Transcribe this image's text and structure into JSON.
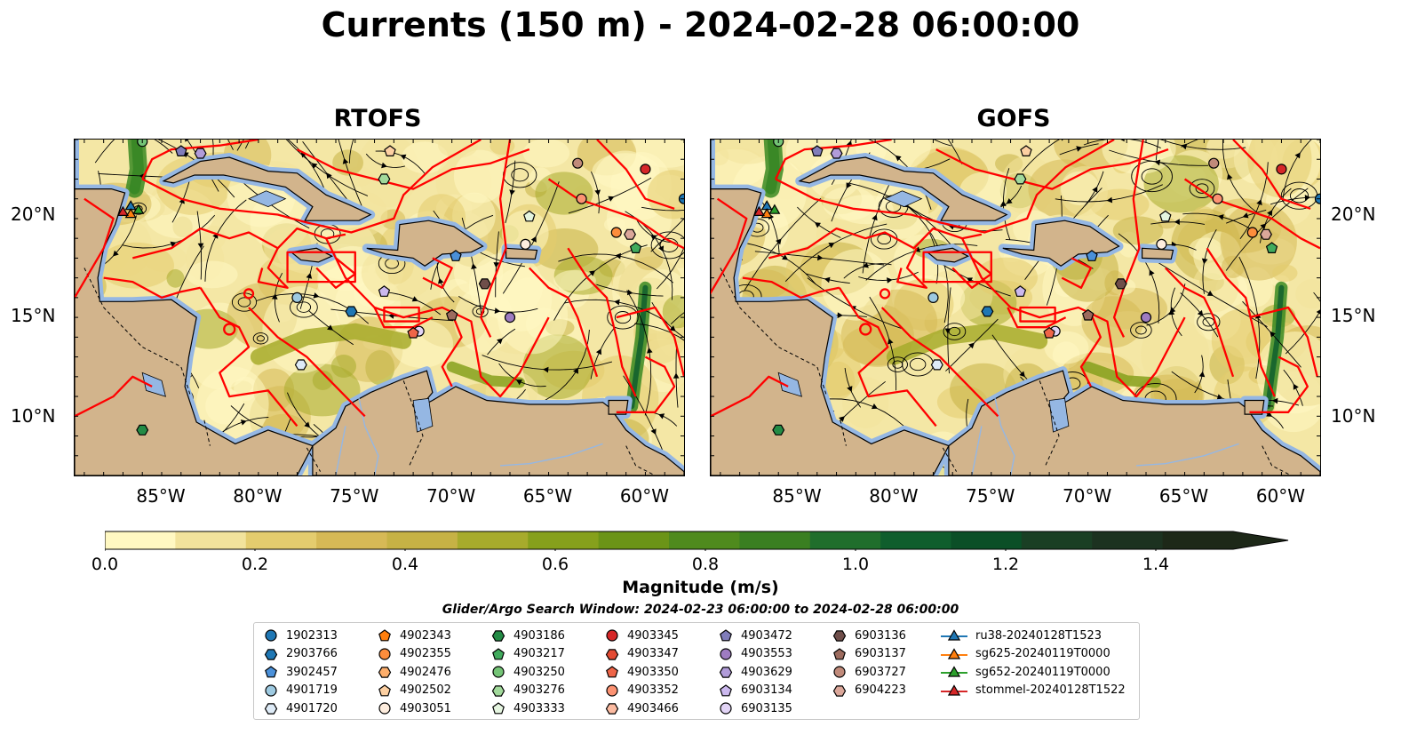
{
  "title": "Currents (150 m) - 2024-02-28 06:00:00",
  "panels": [
    {
      "title": "RTOFS"
    },
    {
      "title": "GOFS"
    }
  ],
  "map": {
    "lat_labels": [
      "20°N",
      "15°N",
      "10°N"
    ],
    "lon_labels": [
      "85°W",
      "80°W",
      "75°W",
      "70°W",
      "65°W",
      "60°W"
    ],
    "lon_range": [
      -89.5,
      -58.0
    ],
    "lat_range": [
      7.0,
      24.0
    ],
    "colors": {
      "ocean_deep": "#95b7e3",
      "land": "#d2b48c",
      "eez": "#ff0000",
      "streamline": "#000000"
    }
  },
  "colorbar": {
    "label": "Magnitude (m/s)",
    "ticks": [
      "0.0",
      "0.2",
      "0.4",
      "0.6",
      "0.8",
      "1.0",
      "1.2",
      "1.4"
    ],
    "colors": [
      "#fff8c2",
      "#f2e39c",
      "#e4cc6e",
      "#d6b956",
      "#c6b245",
      "#a7ab2c",
      "#86a01c",
      "#6b9417",
      "#4f8a1d",
      "#3a7f21",
      "#206e2c",
      "#0f5e2d",
      "#0b4f27",
      "#1a3f24",
      "#1c3220",
      "#1d2818"
    ]
  },
  "search_window": "Glider/Argo Search Window: 2024-02-23 06:00:00 to 2024-02-28 06:00:00",
  "legend": [
    {
      "label": "1902313",
      "color": "#1f77b4",
      "shape": "circle"
    },
    {
      "label": "2903766",
      "color": "#1f77b4",
      "shape": "hexagon"
    },
    {
      "label": "3902457",
      "color": "#4a90d9",
      "shape": "pentagon"
    },
    {
      "label": "4901719",
      "color": "#9ecae1",
      "shape": "circle"
    },
    {
      "label": "4901720",
      "color": "#deebf7",
      "shape": "hexagon"
    },
    {
      "label": "4902343",
      "color": "#ff7f0e",
      "shape": "pentagon"
    },
    {
      "label": "4902355",
      "color": "#fd8d3c",
      "shape": "circle"
    },
    {
      "label": "4902476",
      "color": "#fdae6b",
      "shape": "hexagon"
    },
    {
      "label": "4902502",
      "color": "#fdd0a2",
      "shape": "pentagon"
    },
    {
      "label": "4903051",
      "color": "#feedde",
      "shape": "circle"
    },
    {
      "label": "4903186",
      "color": "#238b45",
      "shape": "hexagon"
    },
    {
      "label": "4903217",
      "color": "#41ab5d",
      "shape": "pentagon"
    },
    {
      "label": "4903250",
      "color": "#74c476",
      "shape": "circle"
    },
    {
      "label": "4903276",
      "color": "#a1d99b",
      "shape": "hexagon"
    },
    {
      "label": "4903333",
      "color": "#e5f5e0",
      "shape": "pentagon"
    },
    {
      "label": "4903345",
      "color": "#d62728",
      "shape": "circle"
    },
    {
      "label": "4903347",
      "color": "#e34a33",
      "shape": "hexagon"
    },
    {
      "label": "4903350",
      "color": "#ef6548",
      "shape": "pentagon"
    },
    {
      "label": "4903352",
      "color": "#fc9272",
      "shape": "circle"
    },
    {
      "label": "4903466",
      "color": "#fcbba1",
      "shape": "hexagon"
    },
    {
      "label": "4903472",
      "color": "#807dba",
      "shape": "pentagon"
    },
    {
      "label": "4903553",
      "color": "#9e7cc1",
      "shape": "circle"
    },
    {
      "label": "4903629",
      "color": "#b19cd9",
      "shape": "hexagon"
    },
    {
      "label": "6903134",
      "color": "#cbb8ee",
      "shape": "pentagon"
    },
    {
      "label": "6903135",
      "color": "#e2d4f6",
      "shape": "circle"
    },
    {
      "label": "6903136",
      "color": "#6f4e4a",
      "shape": "hexagon"
    },
    {
      "label": "6903137",
      "color": "#9c6b5e",
      "shape": "pentagon"
    },
    {
      "label": "6903727",
      "color": "#c08a7a",
      "shape": "circle"
    },
    {
      "label": "6904223",
      "color": "#dba79a",
      "shape": "hexagon"
    },
    {
      "label": "ru38-20240128T1523",
      "color": "#1f77b4",
      "shape": "triangle"
    },
    {
      "label": "sg625-20240119T0000",
      "color": "#ff7f0e",
      "shape": "triangle"
    },
    {
      "label": "sg652-20240119T0000",
      "color": "#2ca02c",
      "shape": "triangle"
    },
    {
      "label": "stommel-20240128T1522",
      "color": "#d62728",
      "shape": "triangle"
    }
  ],
  "markers": [
    {
      "id": "1902313",
      "lon": -58.0,
      "lat": 21.0
    },
    {
      "id": "4901719",
      "lon": -78.0,
      "lat": 16.0
    },
    {
      "id": "2903766",
      "lon": -75.2,
      "lat": 15.3
    },
    {
      "id": "4901720",
      "lon": -77.8,
      "lat": 12.6
    },
    {
      "id": "4903186",
      "lon": -86.0,
      "lat": 9.3
    },
    {
      "id": "4903217",
      "lon": -60.5,
      "lat": 18.5
    },
    {
      "id": "4903276",
      "lon": -73.5,
      "lat": 22.0
    },
    {
      "id": "4903250",
      "lon": -86.0,
      "lat": 23.9
    },
    {
      "id": "4903345",
      "lon": -60.0,
      "lat": 22.5
    },
    {
      "id": "4903352",
      "lon": -63.3,
      "lat": 21.0
    },
    {
      "id": "6903727",
      "lon": -63.5,
      "lat": 22.8
    },
    {
      "id": "4902355",
      "lon": -61.5,
      "lat": 19.3
    },
    {
      "id": "6904223",
      "lon": -60.8,
      "lat": 19.2
    },
    {
      "id": "3902457",
      "lon": -69.8,
      "lat": 18.1
    },
    {
      "id": "4903051",
      "lon": -66.2,
      "lat": 18.7
    },
    {
      "id": "4903333",
      "lon": -66.0,
      "lat": 20.1
    },
    {
      "id": "6903136",
      "lon": -68.3,
      "lat": 16.7
    },
    {
      "id": "6903137",
      "lon": -70.0,
      "lat": 15.1
    },
    {
      "id": "4903553",
      "lon": -67.0,
      "lat": 15.0
    },
    {
      "id": "6903134",
      "lon": -73.5,
      "lat": 16.3
    },
    {
      "id": "6903135",
      "lon": -71.7,
      "lat": 14.3
    },
    {
      "id": "4903350",
      "lon": -72.0,
      "lat": 14.2
    },
    {
      "id": "4903472",
      "lon": -84.0,
      "lat": 23.4
    },
    {
      "id": "4903629",
      "lon": -83.0,
      "lat": 23.3
    },
    {
      "id": "4902502",
      "lon": -73.2,
      "lat": 23.4
    },
    {
      "id": "ru38-20240128T1523",
      "lon": -86.6,
      "lat": 20.6
    },
    {
      "id": "sg625-20240119T0000",
      "lon": -86.6,
      "lat": 20.2
    },
    {
      "id": "sg652-20240119T0000",
      "lon": -86.2,
      "lat": 20.4
    },
    {
      "id": "stommel-20240128T1522",
      "lon": -87.0,
      "lat": 20.3
    }
  ]
}
